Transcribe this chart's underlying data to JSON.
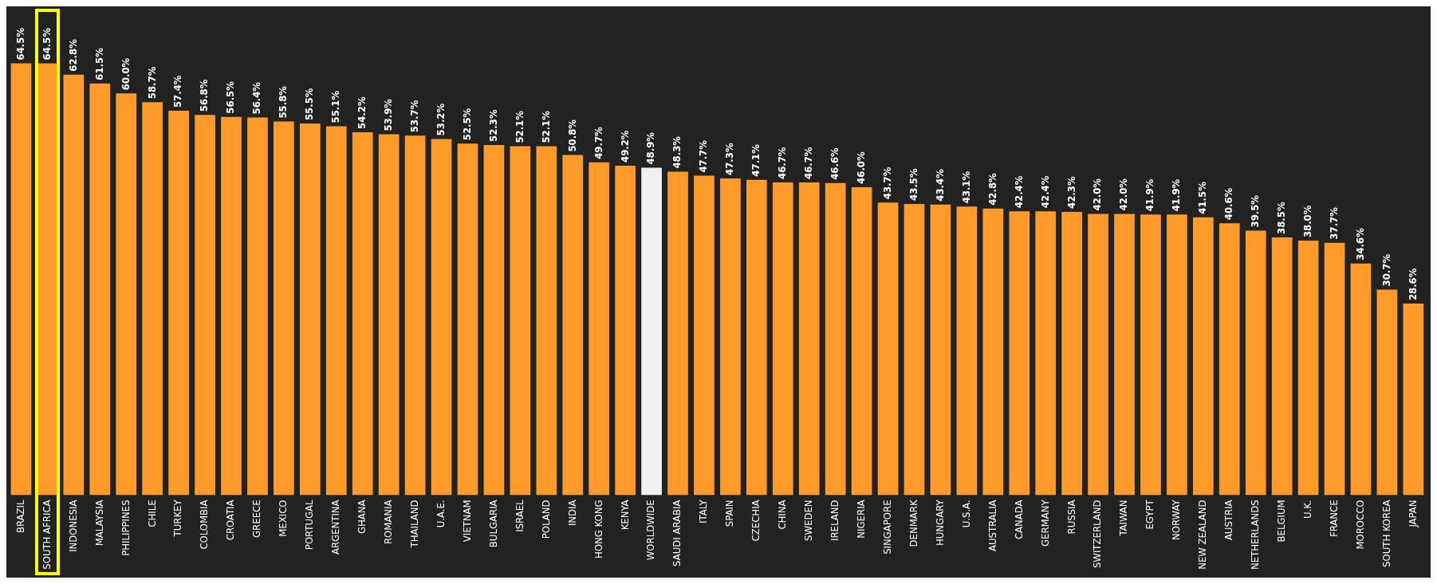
{
  "chart_data": {
    "type": "bar",
    "categories": [
      "BRAZIL",
      "SOUTH AFRICA",
      "INDONESIA",
      "MALAYSIA",
      "PHILIPPINES",
      "CHILE",
      "TURKEY",
      "COLOMBIA",
      "CROATIA",
      "GREECE",
      "MEXICO",
      "PORTUGAL",
      "ARGENTINA",
      "GHANA",
      "ROMANIA",
      "THAILAND",
      "U.A.E.",
      "VIETNAM",
      "BULGARIA",
      "ISRAEL",
      "POLAND",
      "INDIA",
      "HONG KONG",
      "KENYA",
      "WORLDWIDE",
      "SAUDI ARABIA",
      "ITALY",
      "SPAIN",
      "CZECHIA",
      "CHINA",
      "SWEDEN",
      "IRELAND",
      "NIGERIA",
      "SINGAPORE",
      "DENMARK",
      "HUNGARY",
      "U.S.A.",
      "AUSTRALIA",
      "CANADA",
      "GERMANY",
      "RUSSIA",
      "SWITZERLAND",
      "TAIWAN",
      "EGYPT",
      "NORWAY",
      "NEW ZEALAND",
      "AUSTRIA",
      "NETHERLANDS",
      "BELGIUM",
      "U.K.",
      "FRANCE",
      "MOROCCO",
      "SOUTH KOREA",
      "JAPAN"
    ],
    "values": [
      64.5,
      64.5,
      62.8,
      61.5,
      60.0,
      58.7,
      57.4,
      56.8,
      56.5,
      56.4,
      55.8,
      55.5,
      55.1,
      54.2,
      53.9,
      53.7,
      53.2,
      52.5,
      52.3,
      52.1,
      52.1,
      50.8,
      49.7,
      49.2,
      48.9,
      48.3,
      47.7,
      47.3,
      47.1,
      46.7,
      46.7,
      46.6,
      46.0,
      43.7,
      43.5,
      43.4,
      43.1,
      42.8,
      42.4,
      42.4,
      42.3,
      42.0,
      42.0,
      41.9,
      41.9,
      41.5,
      40.6,
      39.5,
      38.5,
      38.0,
      37.7,
      34.6,
      30.7,
      28.6
    ],
    "value_labels": [
      "64.5%",
      "64.5%",
      "62.8%",
      "61.5%",
      "60.0%",
      "58.7%",
      "57.4%",
      "56.8%",
      "56.5%",
      "56.4%",
      "55.8%",
      "55.5%",
      "55.1%",
      "54.2%",
      "53.9%",
      "53.7%",
      "53.2%",
      "52.5%",
      "52.3%",
      "52.1%",
      "52.1%",
      "50.8%",
      "49.7%",
      "49.2%",
      "48.9%",
      "48.3%",
      "47.7%",
      "47.3%",
      "47.1%",
      "46.7%",
      "46.7%",
      "46.6%",
      "46.0%",
      "43.7%",
      "43.5%",
      "43.4%",
      "43.1%",
      "42.8%",
      "42.4%",
      "42.4%",
      "42.3%",
      "42.0%",
      "42.0%",
      "41.9%",
      "41.9%",
      "41.5%",
      "40.6%",
      "39.5%",
      "38.5%",
      "38.0%",
      "37.7%",
      "34.6%",
      "30.7%",
      "28.6%"
    ],
    "colors": [
      "#ff9b2b",
      "#ff9b2b",
      "#ff9b2b",
      "#ff9b2b",
      "#ff9b2b",
      "#ff9b2b",
      "#ff9b2b",
      "#ff9b2b",
      "#ff9b2b",
      "#ff9b2b",
      "#ff9b2b",
      "#ff9b2b",
      "#ff9b2b",
      "#ff9b2b",
      "#ff9b2b",
      "#ff9b2b",
      "#ff9b2b",
      "#ff9b2b",
      "#ff9b2b",
      "#ff9b2b",
      "#ff9b2b",
      "#ff9b2b",
      "#ff9b2b",
      "#ff9b2b",
      "#f0f0f0",
      "#ff9b2b",
      "#ff9b2b",
      "#ff9b2b",
      "#ff9b2b",
      "#ff9b2b",
      "#ff9b2b",
      "#ff9b2b",
      "#ff9b2b",
      "#ff9b2b",
      "#ff9b2b",
      "#ff9b2b",
      "#ff9b2b",
      "#ff9b2b",
      "#ff9b2b",
      "#ff9b2b",
      "#ff9b2b",
      "#ff9b2b",
      "#ff9b2b",
      "#ff9b2b",
      "#ff9b2b",
      "#ff9b2b",
      "#ff9b2b",
      "#ff9b2b",
      "#ff9b2b",
      "#ff9b2b",
      "#ff9b2b",
      "#ff9b2b",
      "#ff9b2b",
      "#ff9b2b"
    ],
    "ylim": [
      0,
      73
    ],
    "tick_labels": "x",
    "legend": false
  }
}
